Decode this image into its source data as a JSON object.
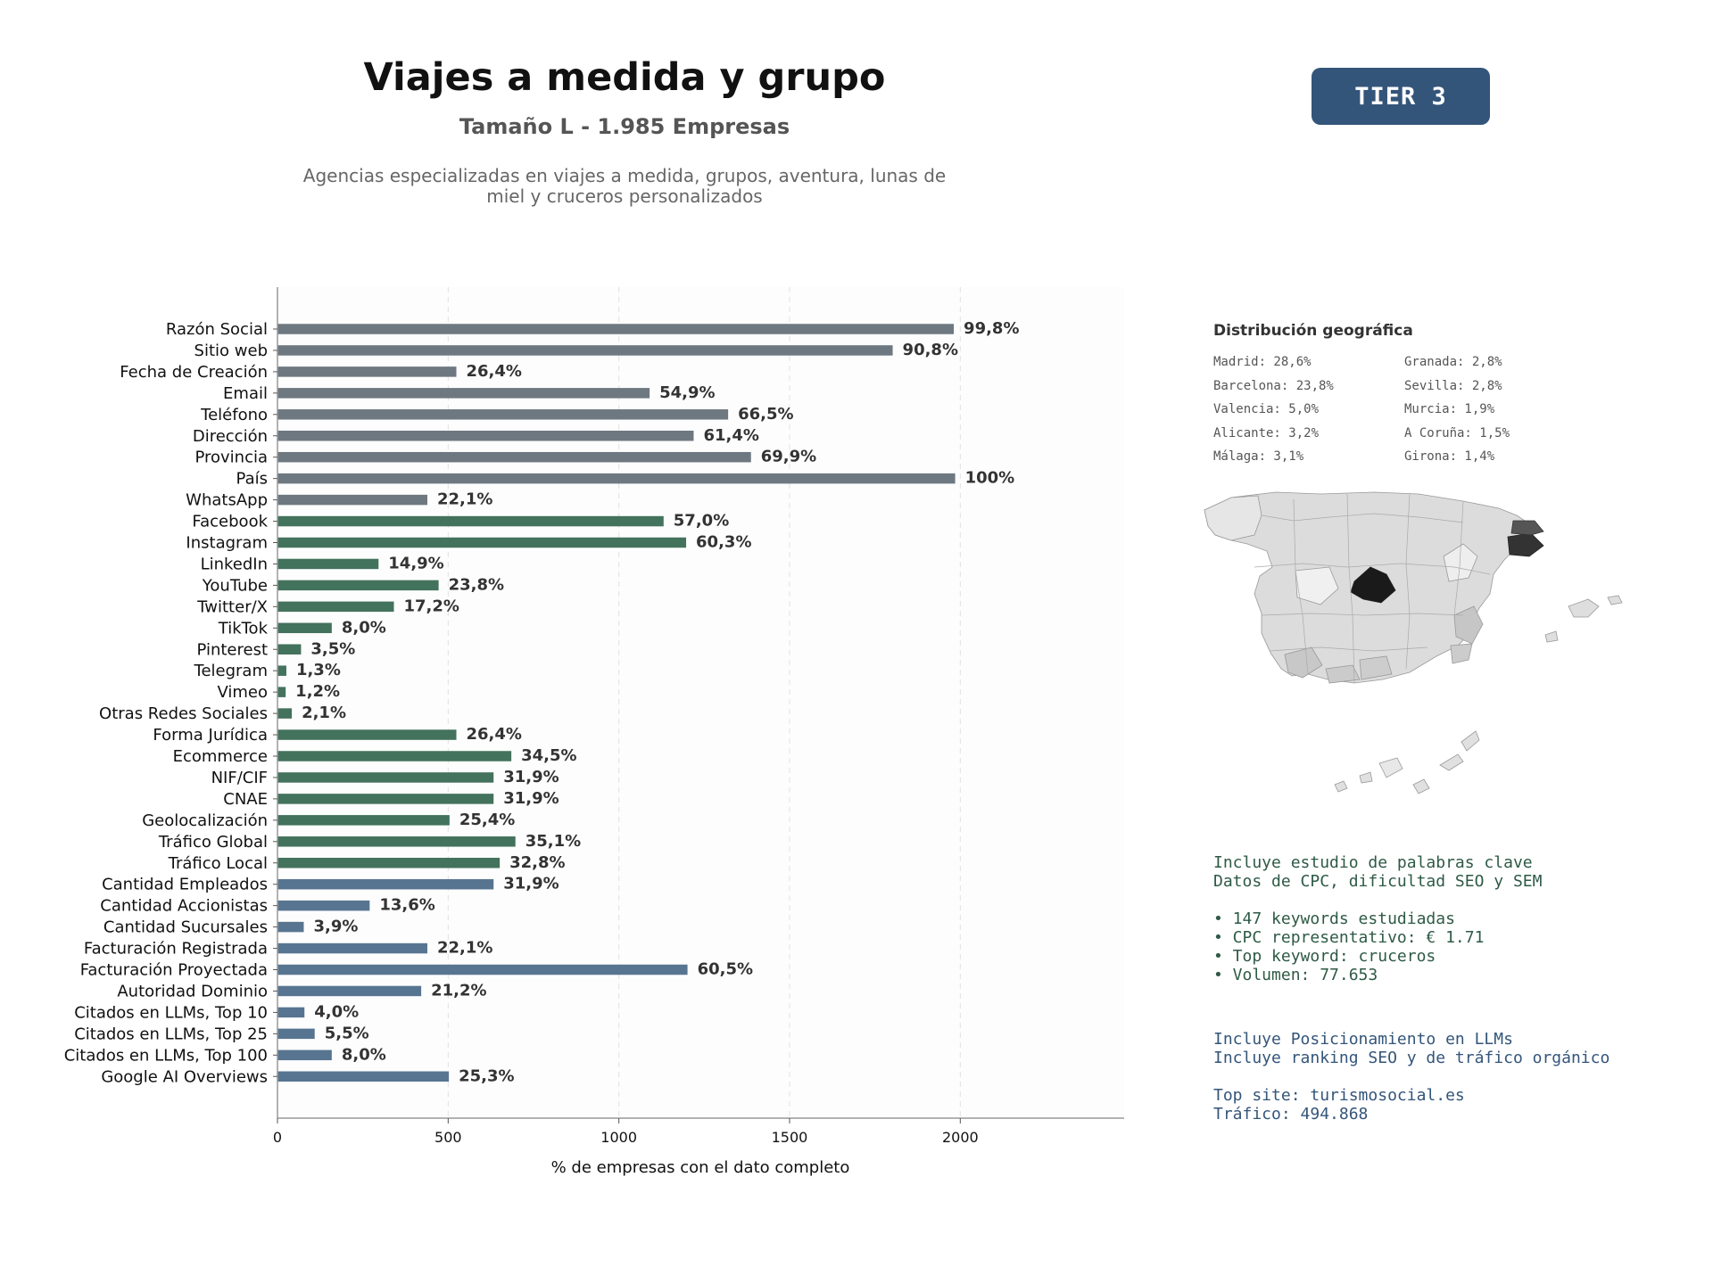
{
  "header": {
    "title": "Viajes a medida y grupo",
    "subtitle": "Tamaño L - 1.985 Empresas",
    "description": "Agencias especializadas en viajes a medida, grupos, aventura, lunas de miel y cruceros personalizados",
    "tier_badge": "TIER 3"
  },
  "colors": {
    "basic": "#6e7881",
    "social": "#43725d",
    "business": "#577591",
    "badge": "#34557a",
    "keyword_text": "#2e5a46",
    "llm_text": "#34557a"
  },
  "chart_data": {
    "type": "bar",
    "orientation": "horizontal",
    "xlabel": "% de empresas con el dato completo",
    "ylabel": "",
    "xlim": [
      0,
      2480
    ],
    "xticks": [
      0,
      500,
      1000,
      1500,
      2000
    ],
    "grid": "vertical dashed",
    "categories": [
      "Razón Social",
      "Sitio web",
      "Fecha de Creación",
      "Email",
      "Teléfono",
      "Dirección",
      "Provincia",
      "País",
      "WhatsApp",
      "Facebook",
      "Instagram",
      "LinkedIn",
      "YouTube",
      "Twitter/X",
      "TikTok",
      "Pinterest",
      "Telegram",
      "Vimeo",
      "Otras Redes Sociales",
      "Forma Jurídica",
      "Ecommerce",
      "NIF/CIF",
      "CNAE",
      "Geolocalización",
      "Tráfico Global",
      "Tráfico Local",
      "Cantidad Empleados",
      "Cantidad Accionistas",
      "Cantidad Sucursales",
      "Facturación Registrada",
      "Facturación Proyectada",
      "Autoridad Dominio",
      "Citados en LLMs, Top 10",
      "Citados en LLMs, Top 25",
      "Citados en LLMs, Top 100",
      "Google AI Overviews"
    ],
    "values": [
      1981,
      1802,
      524,
      1090,
      1320,
      1219,
      1387,
      1985,
      439,
      1131,
      1197,
      296,
      472,
      341,
      159,
      69,
      26,
      24,
      42,
      524,
      685,
      633,
      633,
      504,
      697,
      651,
      633,
      270,
      77,
      439,
      1201,
      421,
      79,
      109,
      159,
      502
    ],
    "labels": [
      "99,8%",
      "90,8%",
      "26,4%",
      "54,9%",
      "66,5%",
      "61,4%",
      "69,9%",
      "100%",
      "22,1%",
      "57,0%",
      "60,3%",
      "14,9%",
      "23,8%",
      "17,2%",
      "8,0%",
      "3,5%",
      "1,3%",
      "1,2%",
      "2,1%",
      "26,4%",
      "34,5%",
      "31,9%",
      "31,9%",
      "25,4%",
      "35,1%",
      "32,8%",
      "31,9%",
      "13,6%",
      "3,9%",
      "22,1%",
      "60,5%",
      "21,2%",
      "4,0%",
      "5,5%",
      "8,0%",
      "25,3%"
    ],
    "groups": [
      "basic",
      "basic",
      "basic",
      "basic",
      "basic",
      "basic",
      "basic",
      "basic",
      "basic",
      "social",
      "social",
      "social",
      "social",
      "social",
      "social",
      "social",
      "social",
      "social",
      "social",
      "social",
      "social",
      "social",
      "social",
      "social",
      "social",
      "social",
      "business",
      "business",
      "business",
      "business",
      "business",
      "business",
      "business",
      "business",
      "business",
      "business"
    ]
  },
  "geo": {
    "title": "Distribución geográfica",
    "items": [
      "Madrid: 28,6%",
      "Barcelona: 23,8%",
      "Valencia: 5,0%",
      "Alicante: 3,2%",
      "Málaga: 3,1%",
      "Granada: 2,8%",
      "Sevilla: 2,8%",
      "Murcia: 1,9%",
      "A Coruña: 1,5%",
      "Girona: 1,4%"
    ]
  },
  "keywords": {
    "line1": "Incluye estudio de palabras clave",
    "line2": "Datos de CPC, dificultad SEO y SEM",
    "bullets": [
      "• 147 keywords estudiadas",
      "• CPC representativo: € 1.71",
      "• Top keyword: cruceros",
      "• Volumen: 77.653"
    ]
  },
  "llm": {
    "line1": "Incluye Posicionamiento en LLMs",
    "line2": "Incluye ranking SEO y de tráfico orgánico",
    "top_site": "Top site: turismosocial.es",
    "traffic": "Tráfico: 494.868"
  }
}
